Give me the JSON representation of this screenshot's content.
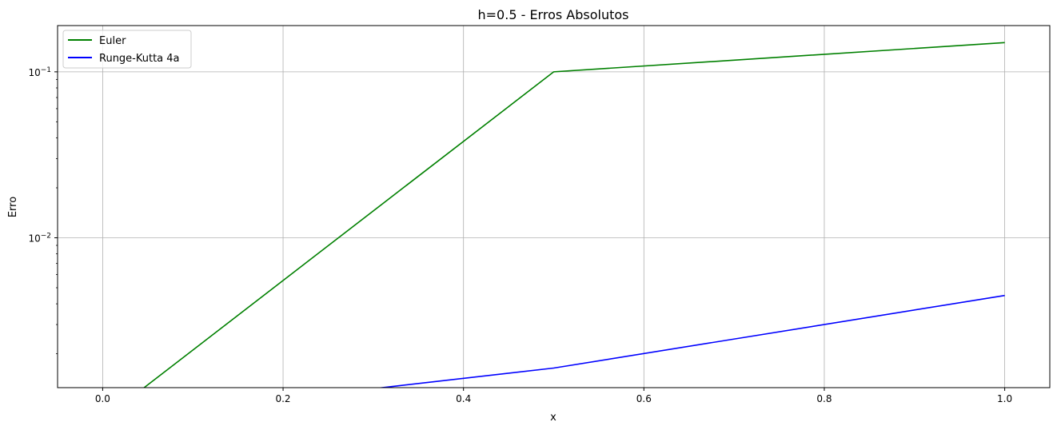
{
  "chart_data": {
    "type": "line",
    "title": "h=0.5 - Erros Absolutos",
    "xlabel": "x",
    "ylabel": "Erro",
    "yscale": "log",
    "xlim": [
      -0.05,
      1.05
    ],
    "ylim": [
      0.00125,
      0.19
    ],
    "grid": true,
    "legend_position": "upper-left",
    "x_ticks": [
      0.0,
      0.2,
      0.4,
      0.6,
      0.8,
      1.0
    ],
    "x_tick_labels": [
      "0.0",
      "0.2",
      "0.4",
      "0.6",
      "0.8",
      "1.0"
    ],
    "y_ticks": [
      {
        "value": 0.1,
        "base": "10",
        "exp": "−1"
      },
      {
        "value": 0.01,
        "base": "10",
        "exp": "−2"
      }
    ],
    "series": [
      {
        "name": "Euler",
        "color": "#008000",
        "x": [
          0.0,
          0.5,
          1.0
        ],
        "y": [
          0.0,
          0.1,
          0.15
        ]
      },
      {
        "name": "Runge-Kutta 4a",
        "color": "#0000ff",
        "x": [
          0.0,
          0.5,
          1.0
        ],
        "y": [
          0.0,
          0.00164,
          0.00449
        ]
      }
    ]
  }
}
